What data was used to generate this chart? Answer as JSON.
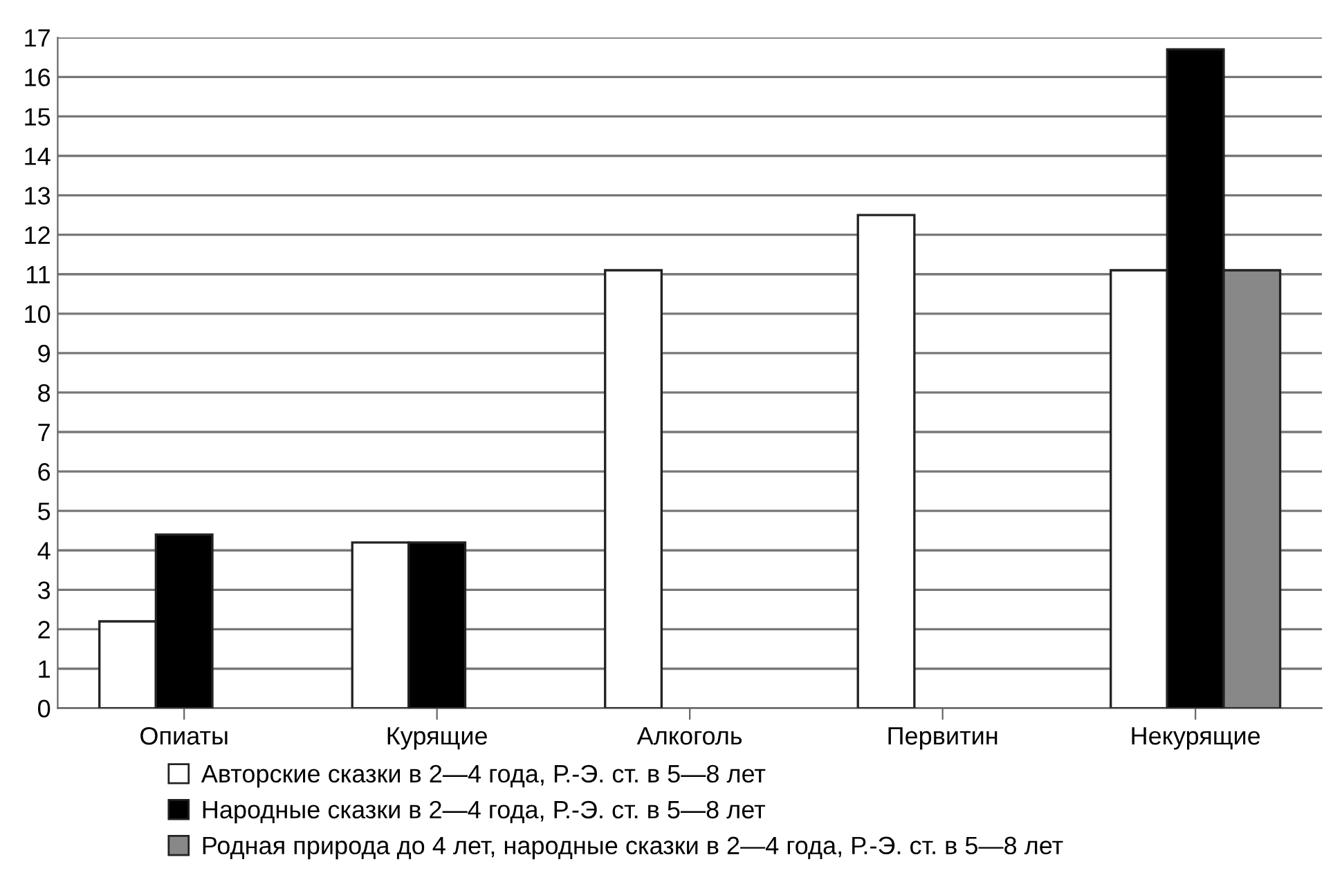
{
  "chart_data": {
    "type": "bar",
    "categories": [
      "Опиаты",
      "Курящие",
      "Алкоголь",
      "Первитин",
      "Некурящие"
    ],
    "series": [
      {
        "name": "Авторские сказки в 2—4 года, Р.-Э. ст. в 5—8 лет",
        "color": "#ffffff",
        "values": [
          2.2,
          4.2,
          11.1,
          12.5,
          11.1
        ]
      },
      {
        "name": "Народные сказки в 2—4 года, Р.-Э. ст. в 5—8 лет",
        "color": "#000000",
        "values": [
          4.4,
          4.2,
          null,
          null,
          16.7
        ]
      },
      {
        "name": "Родная природа до 4 лет, народные сказки в 2—4 года, Р.-Э. ст. в 5—8 лет",
        "color": "#888888",
        "values": [
          null,
          null,
          null,
          null,
          11.1
        ]
      }
    ],
    "ylim": [
      0,
      17
    ],
    "yticks": [
      0,
      1,
      2,
      3,
      4,
      5,
      6,
      7,
      8,
      9,
      10,
      11,
      12,
      13,
      14,
      15,
      16,
      17
    ],
    "grid": "y",
    "legend": "bottom"
  }
}
